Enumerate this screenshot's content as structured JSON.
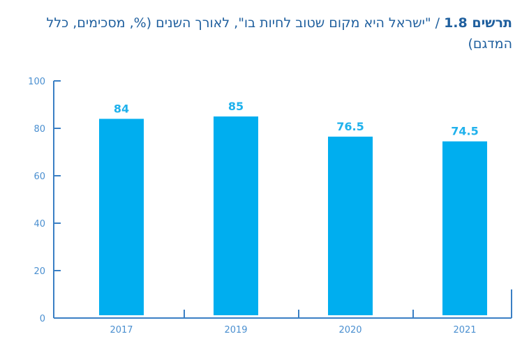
{
  "chart_data": {
    "type": "bar",
    "title_prefix": "תרשים 1.8",
    "title_sep": " / ",
    "title": "\"ישראל היא מקום שטוב לחיות בו\", לאורך השנים (%, מסכימים, כלל המדגם)",
    "categories": [
      "2017",
      "2019",
      "2020",
      "2021"
    ],
    "values": [
      84,
      85,
      76.5,
      74.5
    ],
    "data_labels": [
      "84",
      "85",
      "76.5",
      "74.5"
    ],
    "ylim": [
      0,
      100
    ],
    "yticks": [
      0,
      20,
      40,
      60,
      80,
      100
    ],
    "xlabel": "",
    "ylabel": "",
    "grid": false,
    "colors": {
      "bar": "#00aeef",
      "axis": "#3a7fc4",
      "title": "#1f5f9e",
      "label": "#1fb1ec"
    }
  }
}
